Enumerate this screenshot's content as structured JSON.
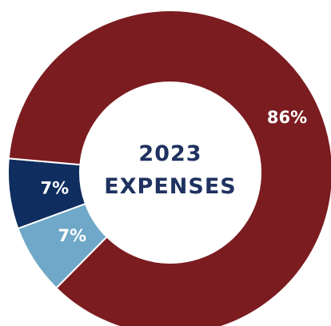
{
  "chart_data": {
    "type": "pie",
    "title_line1": "2023",
    "title_line2": "EXPENSES",
    "slices": [
      {
        "value": 86,
        "label": "86%",
        "color": "#7b1c20"
      },
      {
        "value": 7,
        "label": "7%",
        "color": "#6fa8c8"
      },
      {
        "value": 7,
        "label": "7%",
        "color": "#0f2d5e"
      }
    ]
  }
}
